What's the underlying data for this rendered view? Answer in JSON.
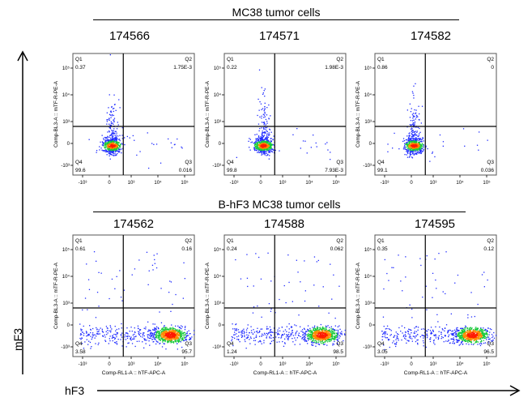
{
  "figure": {
    "group_top_title": "MC38 tumor cells",
    "group_bottom_title": "B-hF3 MC38 tumor cells",
    "y_axis_word": "mF3",
    "x_axis_word": "hF3"
  },
  "colors": {
    "density_low": "#1f2bff",
    "density_mid": "#17c93a",
    "density_high": "#ff8a00",
    "density_peak": "#ff1a00",
    "gate": "#000000",
    "frame": "#555555"
  },
  "chart_data": [
    {
      "type": "scatter",
      "group": "MC38 tumor cells",
      "title": "174566",
      "xlabel": "",
      "ylabel": "Comp-BL3-A :: mTF-R-PE-A",
      "x_ticks": [
        "-10³",
        "0",
        "10³",
        "10⁴",
        "10⁵"
      ],
      "y_ticks": [
        "-10³",
        "0",
        "10³",
        "10⁴",
        "10⁵"
      ],
      "quadrants": {
        "Q1": {
          "label": "Q1",
          "value": "0.37"
        },
        "Q2": {
          "label": "Q2",
          "value": "1.75E-3"
        },
        "Q3": {
          "label": "Q3",
          "value": "0.016"
        },
        "Q4": {
          "label": "Q4",
          "value": "99.6"
        }
      },
      "population": "negative"
    },
    {
      "type": "scatter",
      "group": "MC38 tumor cells",
      "title": "174571",
      "xlabel": "",
      "ylabel": "Comp-BL3-A :: mTF-R-PE-A",
      "x_ticks": [
        "-10³",
        "0",
        "10³",
        "10⁴",
        "10⁵"
      ],
      "y_ticks": [
        "-10³",
        "0",
        "10³",
        "10⁴",
        "10⁵"
      ],
      "quadrants": {
        "Q1": {
          "label": "Q1",
          "value": "0.22"
        },
        "Q2": {
          "label": "Q2",
          "value": "1.98E-3"
        },
        "Q3": {
          "label": "Q3",
          "value": "7.93E-3"
        },
        "Q4": {
          "label": "Q4",
          "value": "99.8"
        }
      },
      "population": "negative"
    },
    {
      "type": "scatter",
      "group": "MC38 tumor cells",
      "title": "174582",
      "xlabel": "",
      "ylabel": "Comp-BL3-A :: mTF-R-PE-A",
      "x_ticks": [
        "-10³",
        "0",
        "10³",
        "10⁴",
        "10⁵"
      ],
      "y_ticks": [
        "-10³",
        "0",
        "10³",
        "10⁴",
        "10⁵"
      ],
      "quadrants": {
        "Q1": {
          "label": "Q1",
          "value": "0.86"
        },
        "Q2": {
          "label": "Q2",
          "value": "0"
        },
        "Q3": {
          "label": "Q3",
          "value": "0.036"
        },
        "Q4": {
          "label": "Q4",
          "value": "99.1"
        }
      },
      "population": "negative"
    },
    {
      "type": "scatter",
      "group": "B-hF3 MC38 tumor cells",
      "title": "174562",
      "xlabel": "Comp-RL1-A :: hTF-APC-A",
      "ylabel": "Comp-BL3-A :: mTF-R-PE-A",
      "x_ticks": [
        "-10³",
        "0",
        "10³",
        "10⁴",
        "10⁵"
      ],
      "y_ticks": [
        "-10³",
        "0",
        "10³",
        "10⁴",
        "10⁵"
      ],
      "quadrants": {
        "Q1": {
          "label": "Q1",
          "value": "0.61"
        },
        "Q2": {
          "label": "Q2",
          "value": "0.16"
        },
        "Q3": {
          "label": "Q3",
          "value": "95.7"
        },
        "Q4": {
          "label": "Q4",
          "value": "3.58"
        }
      },
      "population": "positive"
    },
    {
      "type": "scatter",
      "group": "B-hF3 MC38 tumor cells",
      "title": "174588",
      "xlabel": "Comp-RL1-A :: hTF-APC-A",
      "ylabel": "Comp-BL3-A :: mTF-R-PE-A",
      "x_ticks": [
        "-10³",
        "0",
        "10³",
        "10⁴",
        "10⁵"
      ],
      "y_ticks": [
        "-10³",
        "0",
        "10³",
        "10⁴",
        "10⁵"
      ],
      "quadrants": {
        "Q1": {
          "label": "Q1",
          "value": "0.24"
        },
        "Q2": {
          "label": "Q2",
          "value": "0.062"
        },
        "Q3": {
          "label": "Q3",
          "value": "98.5"
        },
        "Q4": {
          "label": "Q4",
          "value": "1.24"
        }
      },
      "population": "positive"
    },
    {
      "type": "scatter",
      "group": "B-hF3 MC38 tumor cells",
      "title": "174595",
      "xlabel": "Comp-RL1-A :: hTF-APC-A",
      "ylabel": "Comp-BL3-A :: mTF-R-PE-A",
      "x_ticks": [
        "-10³",
        "0",
        "10³",
        "10⁴",
        "10⁵"
      ],
      "y_ticks": [
        "-10³",
        "0",
        "10³",
        "10⁴",
        "10⁵"
      ],
      "quadrants": {
        "Q1": {
          "label": "Q1",
          "value": "0.35"
        },
        "Q2": {
          "label": "Q2",
          "value": "0.12"
        },
        "Q3": {
          "label": "Q3",
          "value": "96.5"
        },
        "Q4": {
          "label": "Q4",
          "value": "3.05"
        }
      },
      "population": "positive"
    }
  ]
}
